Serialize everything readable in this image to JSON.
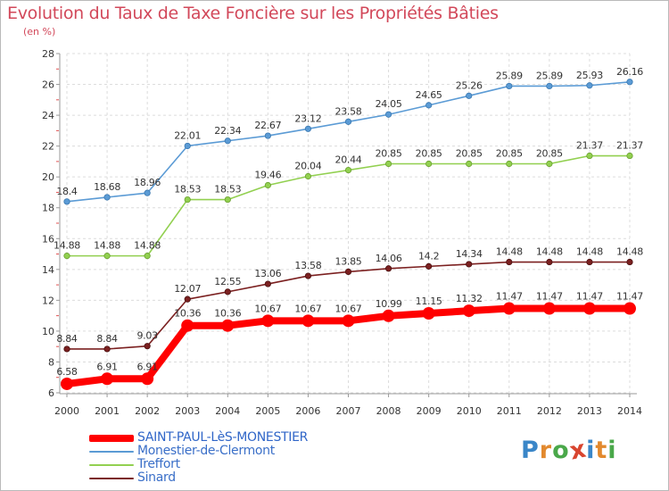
{
  "header": {
    "title": "Evolution du Taux de Taxe Foncière sur les Propriétés Bâties",
    "subtitle": "(en %)"
  },
  "logo": {
    "text": "Proxiti",
    "colors": [
      "#3a86c8",
      "#e2892e",
      "#4aa84a",
      "#d8452f",
      "#3a86c8",
      "#e2892e",
      "#4aa84a"
    ]
  },
  "chart_data": {
    "type": "line",
    "x": [
      "2000",
      "2001",
      "2002",
      "2003",
      "2004",
      "2005",
      "2006",
      "2007",
      "2008",
      "2009",
      "2010",
      "2011",
      "2012",
      "2013",
      "2014"
    ],
    "ylim": [
      6,
      28
    ],
    "yticks": [
      6,
      8,
      10,
      12,
      14,
      16,
      18,
      20,
      22,
      24,
      26,
      28
    ],
    "grid": true,
    "series": [
      {
        "name": "SAINT-PAUL-LèS-MONESTIER",
        "color": "#ff0000",
        "labels": [
          "6.58",
          "6.91",
          "6.91",
          "10.36",
          "10.36",
          "10.67",
          "10.67",
          "10.67",
          "10.99",
          "11.15",
          "11.32",
          "11.47",
          "11.47",
          "11.47",
          "11.47"
        ],
        "values": [
          6.58,
          6.91,
          6.91,
          10.36,
          10.36,
          10.67,
          10.67,
          10.67,
          10.99,
          11.15,
          11.32,
          11.47,
          11.47,
          11.47,
          11.47
        ]
      },
      {
        "name": "Monestier-de-Clermont",
        "color": "#5b9bd5",
        "labels": [
          "18.4",
          "18.68",
          "18.96",
          "22.01",
          "22.34",
          "22.67",
          "23.12",
          "23.58",
          "24.05",
          "24.65",
          "25.26",
          "25.89",
          "25.89",
          "25.93",
          "26.16"
        ],
        "values": [
          18.4,
          18.68,
          18.96,
          22.01,
          22.34,
          22.67,
          23.12,
          23.58,
          24.05,
          24.65,
          25.26,
          25.89,
          25.89,
          25.93,
          26.16
        ]
      },
      {
        "name": "Treffort",
        "color": "#92d050",
        "labels": [
          "14.88",
          "14.88",
          "14.88",
          "18.53",
          "18.53",
          "19.46",
          "20.04",
          "20.44",
          "20.85",
          "20.85",
          "20.85",
          "20.85",
          "20.85",
          "21.37",
          "21.37"
        ],
        "values": [
          14.88,
          14.88,
          14.88,
          18.53,
          18.53,
          19.46,
          20.04,
          20.44,
          20.85,
          20.85,
          20.85,
          20.85,
          20.85,
          21.37,
          21.37
        ]
      },
      {
        "name": "Sinard",
        "color": "#7b2020",
        "labels": [
          "8.84",
          "8.84",
          "9.03",
          "12.07",
          "12.55",
          "13.06",
          "13.58",
          "13.85",
          "14.06",
          "14.2",
          "14.34",
          "14.48",
          "14.48",
          "14.48",
          "14.48"
        ],
        "values": [
          8.84,
          8.84,
          9.03,
          12.07,
          12.55,
          13.06,
          13.58,
          13.85,
          14.06,
          14.2,
          14.34,
          14.48,
          14.48,
          14.48,
          14.48
        ]
      }
    ]
  }
}
